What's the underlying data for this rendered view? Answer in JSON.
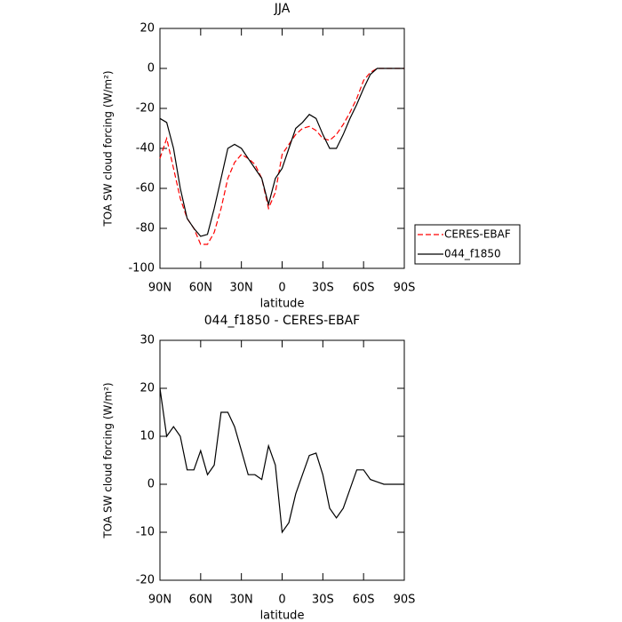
{
  "chart_data": [
    {
      "type": "line",
      "title": "JJA",
      "xlabel": "latitude",
      "ylabel": "TOA SW cloud forcing (W/m²)",
      "x": [
        90,
        85,
        80,
        75,
        70,
        65,
        60,
        55,
        50,
        45,
        40,
        35,
        30,
        25,
        20,
        15,
        10,
        5,
        0,
        -5,
        -10,
        -15,
        -20,
        -25,
        -30,
        -35,
        -40,
        -45,
        -50,
        -55,
        -60,
        -65,
        -70,
        -75,
        -80,
        -85,
        -90
      ],
      "series": [
        {
          "name": "CERES-EBAF",
          "color": "#ff0000",
          "dash": true,
          "values": [
            -45,
            -35,
            -50,
            -65,
            -75,
            -80,
            -88,
            -88,
            -82,
            -70,
            -55,
            -47,
            -43,
            -45,
            -48,
            -55,
            -70,
            -62,
            -43,
            -38,
            -33,
            -30,
            -29,
            -31,
            -35,
            -36,
            -33,
            -28,
            -22,
            -15,
            -6,
            -2,
            0,
            0,
            0,
            0,
            0
          ]
        },
        {
          "name": "044_f1850",
          "color": "#000000",
          "dash": false,
          "values": [
            -25,
            -27,
            -40,
            -60,
            -75,
            -80,
            -84,
            -83,
            -70,
            -55,
            -40,
            -38,
            -40,
            -45,
            -50,
            -55,
            -68,
            -55,
            -50,
            -40,
            -30,
            -27,
            -23,
            -25,
            -33,
            -40,
            -40,
            -33,
            -25,
            -18,
            -10,
            -3,
            0,
            0,
            0,
            0,
            0
          ]
        }
      ],
      "xlim": [
        90,
        -90
      ],
      "xticks": [
        {
          "value": 90,
          "label": "90N"
        },
        {
          "value": 60,
          "label": "60N"
        },
        {
          "value": 30,
          "label": "30N"
        },
        0,
        {
          "value": -30,
          "label": "30S"
        },
        {
          "value": -60,
          "label": "60S"
        },
        {
          "value": -90,
          "label": "90S"
        }
      ],
      "ylim": [
        -100,
        20
      ],
      "yticks": [
        -100,
        -80,
        -60,
        -40,
        -20,
        0,
        20
      ],
      "legend": "right"
    },
    {
      "type": "line",
      "title": "044_f1850 - CERES-EBAF",
      "xlabel": "latitude",
      "ylabel": "TOA SW cloud forcing (W/m²)",
      "x": [
        90,
        85,
        80,
        75,
        70,
        65,
        60,
        55,
        50,
        45,
        40,
        35,
        30,
        25,
        20,
        15,
        10,
        5,
        0,
        -5,
        -10,
        -15,
        -20,
        -25,
        -30,
        -35,
        -40,
        -45,
        -50,
        -55,
        -60,
        -65,
        -70,
        -75,
        -80,
        -85,
        -90
      ],
      "series": [
        {
          "color": "#000000",
          "dash": false,
          "values": [
            20,
            10,
            12,
            10,
            3,
            3,
            7,
            2,
            4,
            15,
            15,
            12,
            7,
            2,
            2,
            1,
            8,
            4,
            -10,
            -8,
            -2,
            2,
            6,
            6.5,
            2,
            -5,
            -7,
            -5,
            -1,
            3,
            3,
            1,
            0.5,
            0,
            0,
            0,
            0
          ]
        }
      ],
      "xlim": [
        90,
        -90
      ],
      "xticks": [
        {
          "value": 90,
          "label": "90N"
        },
        {
          "value": 60,
          "label": "60N"
        },
        {
          "value": 30,
          "label": "30N"
        },
        0,
        {
          "value": -30,
          "label": "30S"
        },
        {
          "value": -60,
          "label": "60S"
        },
        {
          "value": -90,
          "label": "90S"
        }
      ],
      "ylim": [
        -20,
        30
      ],
      "yticks": [
        -20,
        -10,
        0,
        10,
        20,
        30
      ]
    }
  ]
}
